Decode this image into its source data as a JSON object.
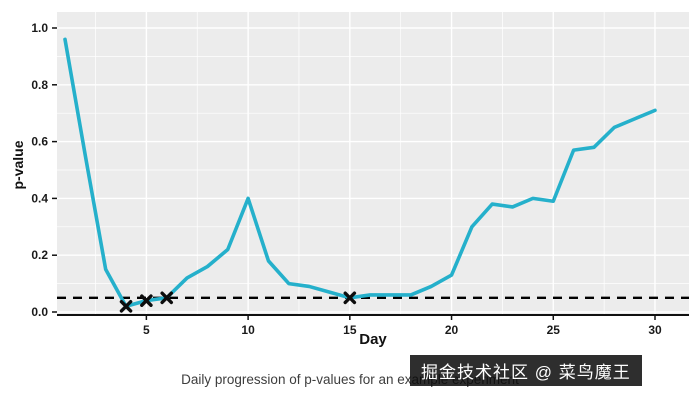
{
  "chart_data": {
    "type": "line",
    "title": "",
    "xlabel": "Day",
    "ylabel": "p-value",
    "x": [
      1,
      2,
      3,
      4,
      5,
      6,
      7,
      8,
      9,
      10,
      11,
      12,
      13,
      14,
      15,
      16,
      17,
      18,
      19,
      20,
      21,
      22,
      23,
      24,
      25,
      26,
      27,
      28,
      29,
      30
    ],
    "series": [
      {
        "name": "p-value",
        "values": [
          0.96,
          0.55,
          0.15,
          0.02,
          0.04,
          0.05,
          0.12,
          0.16,
          0.22,
          0.4,
          0.18,
          0.1,
          0.09,
          0.07,
          0.05,
          0.06,
          0.06,
          0.06,
          0.09,
          0.13,
          0.3,
          0.38,
          0.37,
          0.4,
          0.39,
          0.57,
          0.58,
          0.65,
          0.68,
          0.71
        ]
      }
    ],
    "threshold": {
      "value": 0.05,
      "style": "dashed-black"
    },
    "significant_marker_days": [
      4,
      5,
      6,
      15
    ],
    "xticks": [
      5,
      10,
      15,
      20,
      25,
      30
    ],
    "yticks": [
      0,
      0.2,
      0.4,
      0.6,
      0.8,
      1
    ],
    "xlim": [
      1,
      30
    ],
    "ylim": [
      0,
      1
    ],
    "legend": "none",
    "grid": "white-major-minor",
    "colors": {
      "line": "#25b0cb",
      "marker": "#0d0d0d",
      "threshold": "#000000",
      "panel_bg": "#ececec",
      "grid": "#ffffff",
      "axis": "#111111",
      "tick_text": "#1a1a1a"
    }
  },
  "caption": {
    "text": "Daily progression of p-values for an example experiment"
  },
  "watermark": {
    "text": "掘金技术社区 @ 菜鸟魔王"
  }
}
